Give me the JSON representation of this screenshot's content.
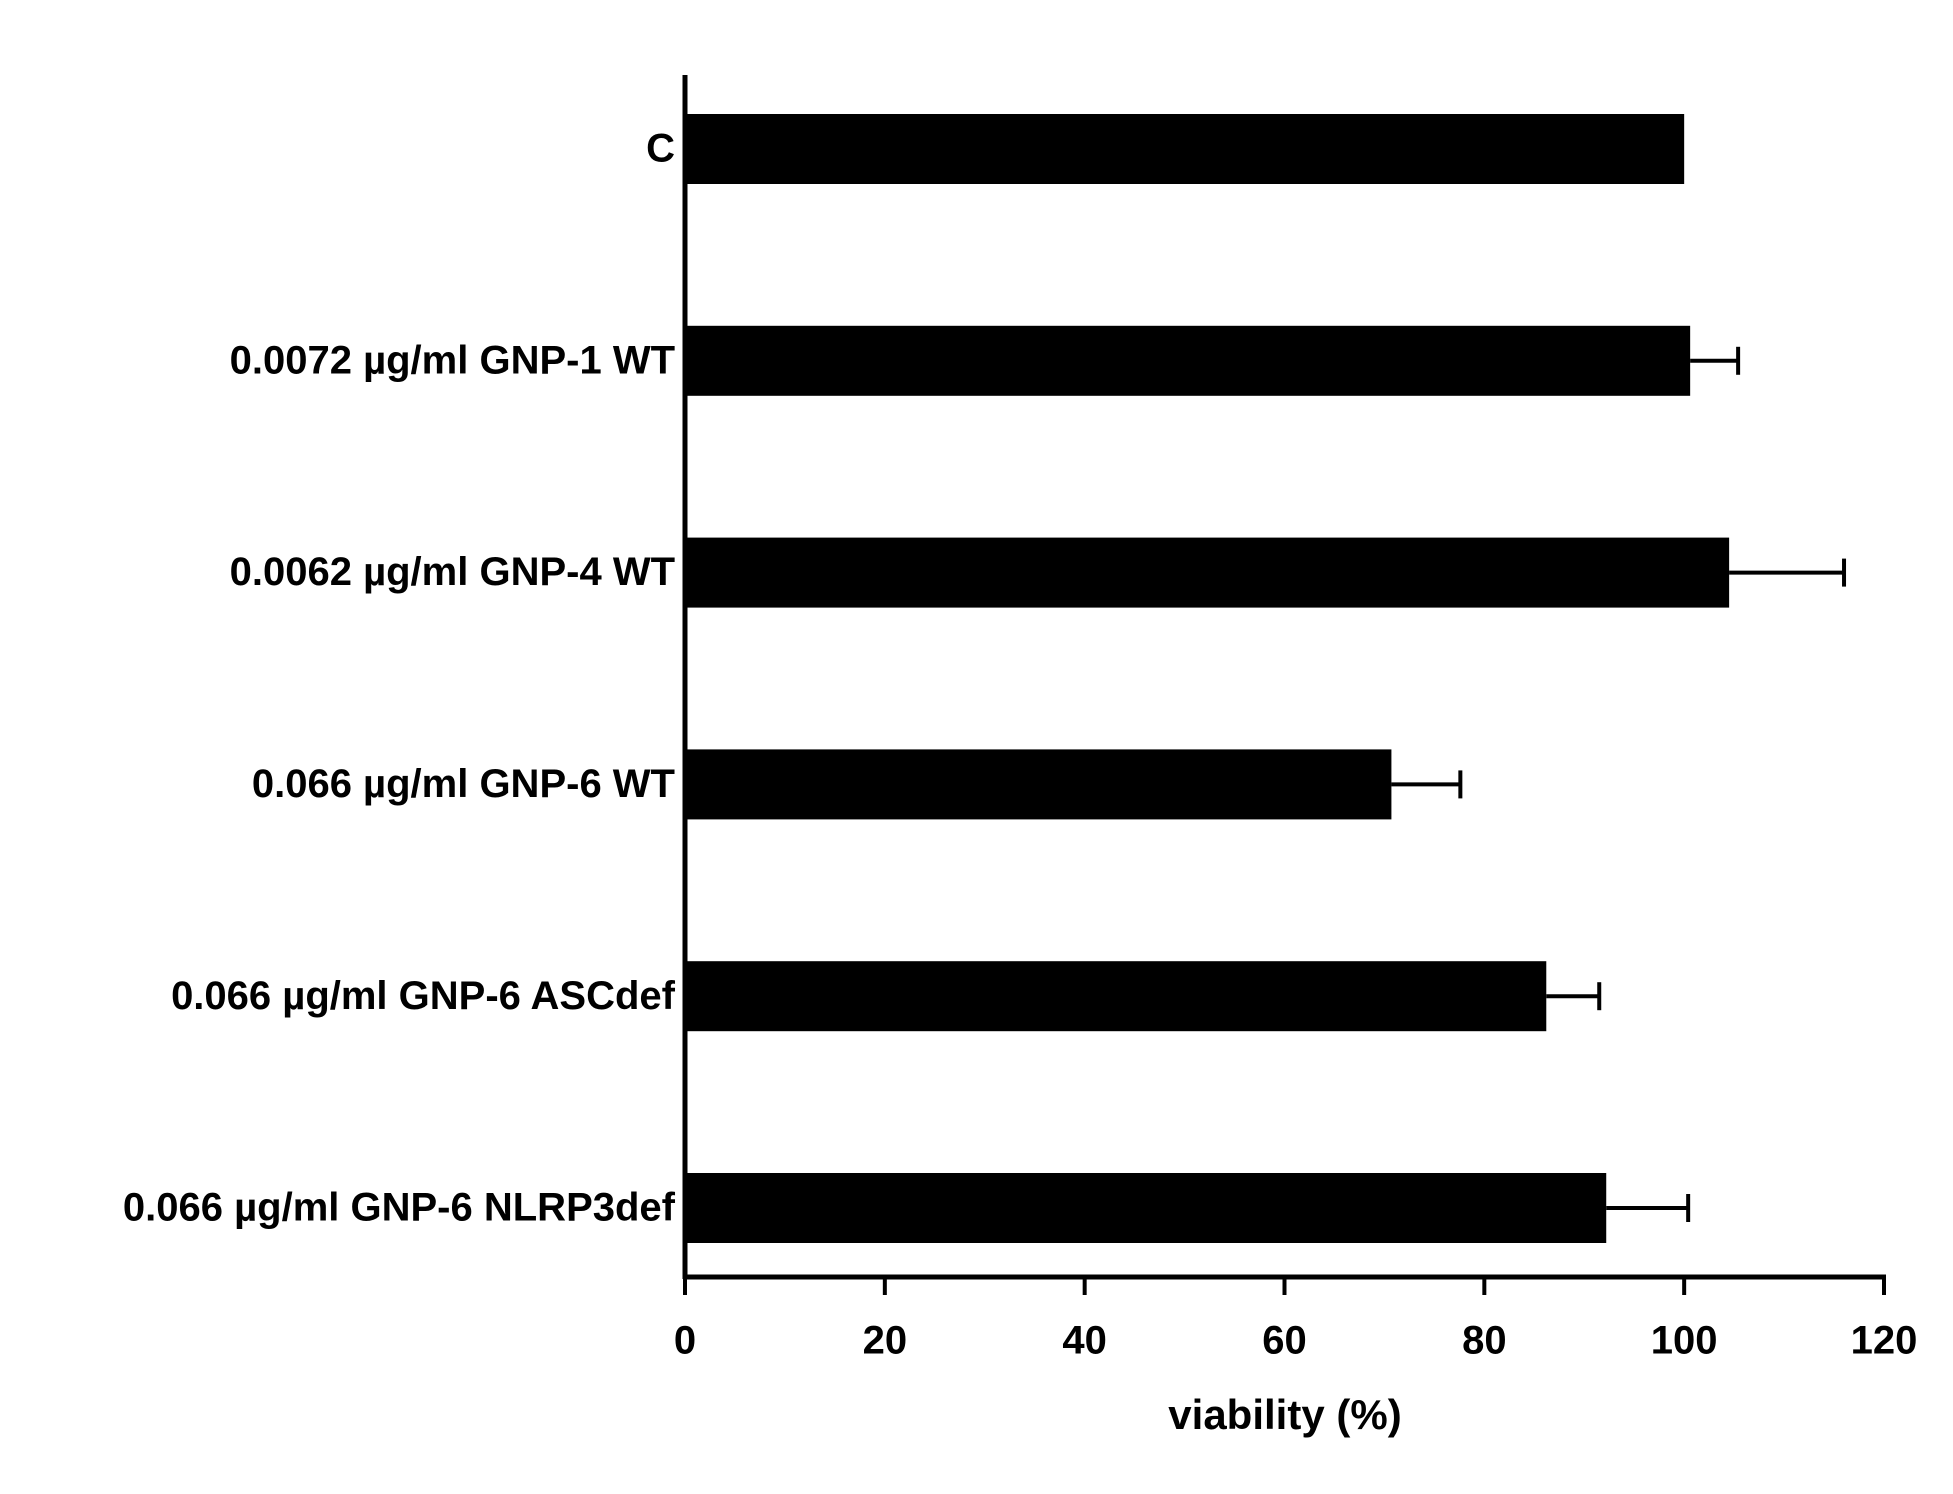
{
  "chart_data": {
    "type": "bar",
    "orientation": "horizontal",
    "categories": [
      "C",
      "0.0072 µg/ml GNP-1 WT",
      "0.0062 µg/ml GNP-4 WT",
      "0.066 µg/ml GNP-6 WT",
      "0.066 µg/ml GNP-6 ASCdef",
      "0.066 µg/ml GNP-6 NLRP3def"
    ],
    "values": [
      100,
      100.6,
      104.5,
      70.7,
      86.2,
      92.2
    ],
    "errors": [
      0,
      4.8,
      11.5,
      6.9,
      5.3,
      8.2
    ],
    "color": "#000000",
    "xlabel": "viability (%)",
    "xlim": [
      0,
      120
    ],
    "xticks": [
      0,
      20,
      40,
      60,
      80,
      100,
      120
    ],
    "grid": false
  }
}
